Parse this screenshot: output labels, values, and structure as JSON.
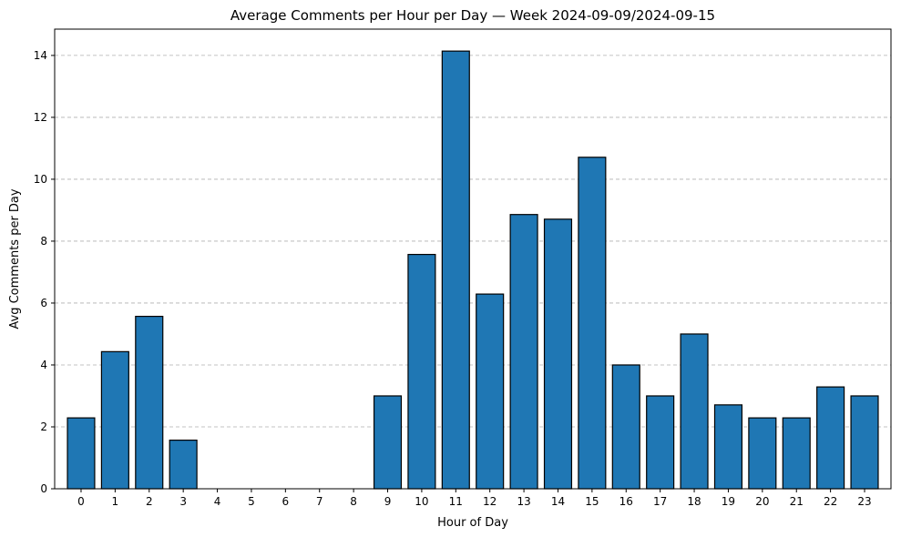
{
  "chart_data": {
    "type": "bar",
    "title": "Average Comments per Hour per Day — Week 2024-09-09/2024-09-15",
    "xlabel": "Hour of Day",
    "ylabel": "Avg Comments per Day",
    "categories": [
      "0",
      "1",
      "2",
      "3",
      "4",
      "5",
      "6",
      "7",
      "8",
      "9",
      "10",
      "11",
      "12",
      "13",
      "14",
      "15",
      "16",
      "17",
      "18",
      "19",
      "20",
      "21",
      "22",
      "23"
    ],
    "values": [
      2.29,
      4.43,
      5.57,
      1.57,
      0,
      0,
      0,
      0,
      0,
      3.0,
      7.57,
      14.14,
      6.29,
      8.86,
      8.71,
      10.71,
      4.0,
      3.0,
      5.0,
      2.71,
      2.29,
      2.29,
      3.29,
      3.0
    ],
    "ylim": [
      0,
      14.85
    ],
    "yticks": [
      0,
      2,
      4,
      6,
      8,
      10,
      12,
      14
    ],
    "grid": "y-dashed",
    "bar_color": "#1f77b4",
    "edge_color": "#000000"
  }
}
